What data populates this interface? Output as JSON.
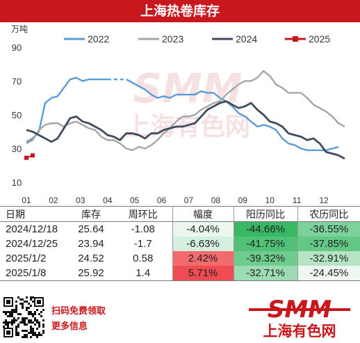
{
  "header": {
    "title": "上海热卷库存"
  },
  "chart_data": {
    "type": "line",
    "ylabel": "万吨",
    "ylim": [
      10,
      90
    ],
    "yticks": [
      10,
      30,
      50,
      70,
      90
    ],
    "xticks": [
      "01",
      "02",
      "03",
      "04",
      "05",
      "06",
      "07",
      "08",
      "09",
      "10",
      "11",
      "12"
    ],
    "x_unit": "week",
    "grid": false,
    "legend_position": "top",
    "series": [
      {
        "name": "2022",
        "color": "#5b9bd5",
        "dash_range": [
          13,
          16
        ],
        "values": [
          34,
          36,
          40,
          57,
          60,
          61,
          66,
          71,
          72,
          70,
          71,
          71,
          71,
          71,
          71,
          71,
          71,
          69,
          67,
          65,
          62,
          60,
          61,
          60,
          62,
          62,
          62,
          62,
          64,
          63,
          63,
          60,
          58,
          55,
          51,
          49,
          46,
          43,
          44,
          43,
          41,
          36,
          33,
          32,
          30,
          29,
          29,
          29,
          29,
          30,
          31
        ]
      },
      {
        "name": "2023",
        "color": "#a5a5a5",
        "values": [
          33,
          35,
          41,
          44,
          45,
          45,
          43,
          45,
          46,
          44,
          42,
          41,
          37,
          35,
          35,
          33,
          30,
          29,
          31,
          30,
          32,
          35,
          39,
          42,
          46,
          49,
          49,
          50,
          53,
          55,
          57,
          58,
          62,
          65,
          68,
          70,
          70,
          72,
          76,
          73,
          68,
          66,
          63,
          63,
          63,
          60,
          56,
          54,
          52,
          49,
          45,
          43
        ]
      },
      {
        "name": "2024",
        "color": "#404a5e",
        "values": [
          41,
          40,
          38,
          36,
          34,
          36,
          42,
          48,
          49,
          46,
          45,
          43,
          41,
          38,
          37,
          35,
          39,
          39,
          38,
          36,
          39,
          39,
          41,
          42,
          43,
          43,
          44,
          45,
          49,
          53,
          55,
          57,
          58,
          56,
          54,
          55,
          57,
          53,
          50,
          46,
          45,
          43,
          39,
          38,
          37,
          35,
          36,
          33,
          28,
          27,
          26,
          24
        ]
      },
      {
        "name": "2025",
        "color": "#c8181e",
        "values": [
          24.52,
          25.92
        ]
      }
    ]
  },
  "table": {
    "headers": [
      "日期",
      "库存",
      "周环比",
      "幅度",
      "阳历同比",
      "农历同比"
    ],
    "rows": [
      [
        "2024/12/18",
        "25.64",
        "-1.08",
        "-4.04%",
        "-44.66%",
        "-36.55%"
      ],
      [
        "2024/12/25",
        "23.94",
        "-1.7",
        "-6.63%",
        "-41.75%",
        "-37.85%"
      ],
      [
        "2025/1/2",
        "24.52",
        "0.58",
        "2.42%",
        "-39.32%",
        "-32.91%"
      ],
      [
        "2025/1/8",
        "25.92",
        "1.4",
        "5.71%",
        "-32.71%",
        "-24.45%"
      ]
    ],
    "heat_colors": {
      "amp": [
        "#eaf6ee",
        "#d5efde",
        "#f36b6d",
        "#ee4b52"
      ],
      "solar": [
        "#39b863",
        "#50c176",
        "#6fcc8d",
        "#9ddbb2"
      ],
      "lunar": [
        "#7dd19b",
        "#63c886",
        "#b4e4c4",
        "#eef8f1"
      ]
    }
  },
  "footer": {
    "promo_line1": "扫码免费领取",
    "promo_line2": "更多信息",
    "logo_text": "SMM",
    "logo_sub": "上海有色网",
    "brand_color": "#c8181e"
  }
}
